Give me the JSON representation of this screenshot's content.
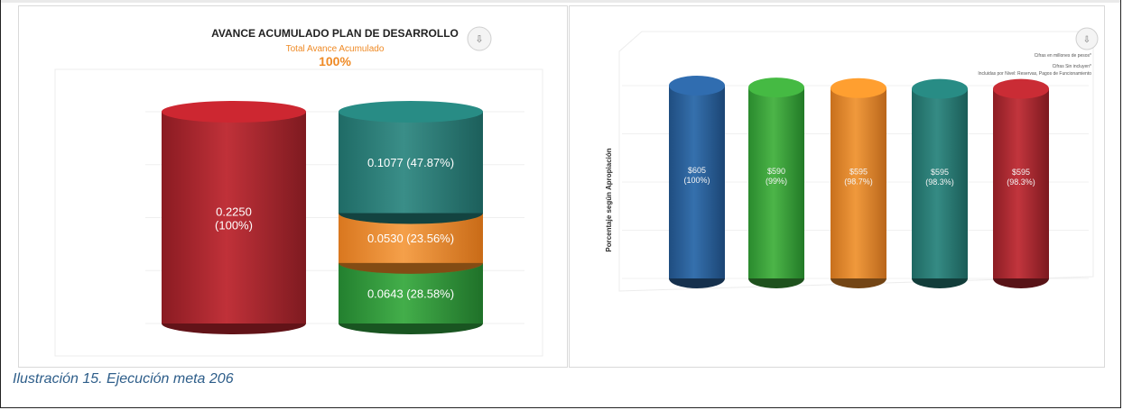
{
  "caption": "Ilustración 15. Ejecución meta 206",
  "charts": {
    "left": {
      "title": "AVANCE ACUMULADO PLAN DE DESARROLLO",
      "subtitle": "Total Avance Acumulado",
      "total": "100%"
    },
    "right": {
      "ylabel": "Porcentaje según Apropiación",
      "legend_lines": [
        "Cifras en millones de pesos*",
        "Cifras Sin incluyen*",
        "Incluidas por Nivel: Reservas, Pagos de Funcionamiento"
      ]
    }
  },
  "chart_data": [
    {
      "type": "bar",
      "title": "AVANCE ACUMULADO PLAN DE DESARROLLO",
      "subtitle": "Total Avance Acumulado 100%",
      "categories": [
        "",
        ""
      ],
      "series": [
        {
          "values": [
            0.225,
            0
          ],
          "labels": [
            "0.2250 (100%)",
            ""
          ],
          "color": "#b2222b"
        },
        {
          "values": [
            0,
            0.0643
          ],
          "labels": [
            "",
            "0.0643 (28.58%)"
          ],
          "color": "#2e9a3c"
        },
        {
          "values": [
            0,
            0.053
          ],
          "labels": [
            "",
            "0.0530 (23.56%)"
          ],
          "color": "#ef8a25"
        },
        {
          "values": [
            0,
            0.1077
          ],
          "labels": [
            "",
            "0.1077 (47.87%)"
          ],
          "color": "#237a74"
        }
      ],
      "stacked": true,
      "ylim": [
        0,
        0.225
      ],
      "grid": true,
      "style": "3d-cylinder"
    },
    {
      "type": "bar",
      "ylabel": "Porcentaje según Apropiación",
      "categories": [
        "",
        "",
        "",
        "",
        ""
      ],
      "values": [
        100,
        99,
        98.7,
        98.3,
        98.3
      ],
      "labels": [
        [
          "$605",
          "(100%)"
        ],
        [
          "$590",
          "(99%)"
        ],
        [
          "$595",
          "(98.7%)"
        ],
        [
          "$595",
          "(98.3%)"
        ],
        [
          "$595",
          "(98.3%)"
        ]
      ],
      "colors": [
        "#2a5f99",
        "#3ca23a",
        "#e58a2a",
        "#237a74",
        "#b0262e"
      ],
      "ylim": [
        0,
        100
      ],
      "grid": true,
      "style": "3d-cylinder"
    }
  ]
}
